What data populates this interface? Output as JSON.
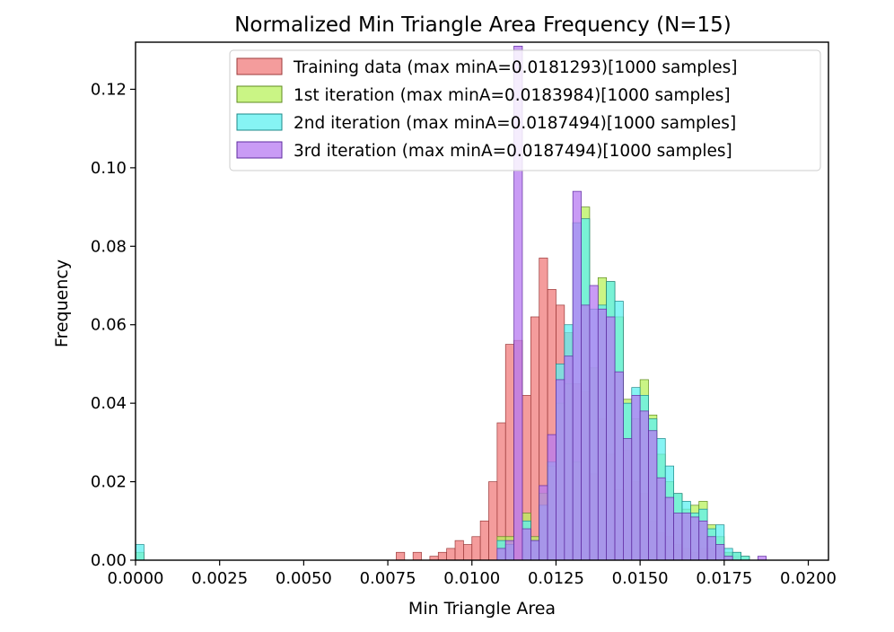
{
  "chart_data": {
    "type": "histogram",
    "title": "Normalized Min Triangle Area Frequency (N=15)",
    "xlabel": "Min Triangle Area",
    "ylabel": "Frequency",
    "xlim": [
      0.0,
      0.0206
    ],
    "ylim": [
      0.0,
      0.132
    ],
    "xticks": [
      0.0,
      0.0025,
      0.005,
      0.0075,
      0.01,
      0.0125,
      0.015,
      0.0175,
      0.02
    ],
    "xtick_labels": [
      "0.0000",
      "0.0025",
      "0.0050",
      "0.0075",
      "0.0100",
      "0.0125",
      "0.0150",
      "0.0175",
      "0.0200"
    ],
    "yticks": [
      0.0,
      0.02,
      0.04,
      0.06,
      0.08,
      0.1,
      0.12
    ],
    "ytick_labels": [
      "0.00",
      "0.02",
      "0.04",
      "0.06",
      "0.08",
      "0.10",
      "0.12"
    ],
    "bin_width": 0.00025,
    "legend_position": "top-right",
    "series": [
      {
        "name": "Training data (max minA=0.0181293)[1000 samples]",
        "color": "#f07b7b",
        "edge": "#9b3a3a",
        "bins": [
          [
            0.00775,
            0.002
          ],
          [
            0.00825,
            0.002
          ],
          [
            0.00875,
            0.001
          ],
          [
            0.009,
            0.002
          ],
          [
            0.00925,
            0.003
          ],
          [
            0.0095,
            0.005
          ],
          [
            0.00975,
            0.004
          ],
          [
            0.01,
            0.006
          ],
          [
            0.01025,
            0.01
          ],
          [
            0.0105,
            0.02
          ],
          [
            0.01075,
            0.035
          ],
          [
            0.011,
            0.055
          ],
          [
            0.01125,
            0.056
          ],
          [
            0.0115,
            0.042
          ],
          [
            0.01175,
            0.062
          ],
          [
            0.012,
            0.077
          ],
          [
            0.01225,
            0.069
          ],
          [
            0.0125,
            0.065
          ],
          [
            0.01275,
            0.058
          ],
          [
            0.013,
            0.045
          ],
          [
            0.01325,
            0.043
          ],
          [
            0.0135,
            0.022
          ],
          [
            0.01375,
            0.036
          ],
          [
            0.014,
            0.027
          ],
          [
            0.01425,
            0.018
          ],
          [
            0.0145,
            0.028
          ],
          [
            0.01475,
            0.02
          ],
          [
            0.015,
            0.017
          ],
          [
            0.01525,
            0.01
          ],
          [
            0.0155,
            0.007
          ],
          [
            0.01575,
            0.006
          ],
          [
            0.016,
            0.004
          ],
          [
            0.01625,
            0.003
          ],
          [
            0.0165,
            0.002
          ],
          [
            0.01675,
            0.003
          ],
          [
            0.017,
            0.003
          ],
          [
            0.0175,
            0.002
          ],
          [
            0.01775,
            0.001
          ]
        ]
      },
      {
        "name": "1st iteration (max minA=0.0183984)[1000 samples]",
        "color": "#b8f25c",
        "edge": "#5f8a20",
        "bins": [
          [
            0.0,
            0.002
          ],
          [
            0.01075,
            0.006
          ],
          [
            0.011,
            0.006
          ],
          [
            0.0115,
            0.012
          ],
          [
            0.01175,
            0.006
          ],
          [
            0.012,
            0.017
          ],
          [
            0.01225,
            0.024
          ],
          [
            0.0125,
            0.04
          ],
          [
            0.01275,
            0.045
          ],
          [
            0.013,
            0.025
          ],
          [
            0.01325,
            0.09
          ],
          [
            0.0135,
            0.049
          ],
          [
            0.01375,
            0.072
          ],
          [
            0.014,
            0.071
          ],
          [
            0.01425,
            0.062
          ],
          [
            0.0145,
            0.041
          ],
          [
            0.01475,
            0.036
          ],
          [
            0.015,
            0.046
          ],
          [
            0.01525,
            0.037
          ],
          [
            0.0155,
            0.027
          ],
          [
            0.01575,
            0.02
          ],
          [
            0.016,
            0.017
          ],
          [
            0.01625,
            0.013
          ],
          [
            0.0165,
            0.014
          ],
          [
            0.01675,
            0.015
          ],
          [
            0.017,
            0.009
          ],
          [
            0.01725,
            0.006
          ],
          [
            0.0175,
            0.002
          ],
          [
            0.01775,
            0.002
          ],
          [
            0.018,
            0.001
          ]
        ]
      },
      {
        "name": "2nd iteration (max minA=0.0187494)[1000 samples]",
        "color": "#5ef0f0",
        "edge": "#1c8888",
        "bins": [
          [
            0.0,
            0.004
          ],
          [
            0.01075,
            0.005
          ],
          [
            0.011,
            0.004
          ],
          [
            0.0115,
            0.01
          ],
          [
            0.01175,
            0.005
          ],
          [
            0.012,
            0.014
          ],
          [
            0.01225,
            0.025
          ],
          [
            0.0125,
            0.05
          ],
          [
            0.01275,
            0.06
          ],
          [
            0.013,
            0.086
          ],
          [
            0.01325,
            0.087
          ],
          [
            0.0135,
            0.064
          ],
          [
            0.01375,
            0.065
          ],
          [
            0.014,
            0.071
          ],
          [
            0.01425,
            0.066
          ],
          [
            0.0145,
            0.04
          ],
          [
            0.01475,
            0.044
          ],
          [
            0.015,
            0.042
          ],
          [
            0.01525,
            0.036
          ],
          [
            0.0155,
            0.031
          ],
          [
            0.01575,
            0.024
          ],
          [
            0.016,
            0.017
          ],
          [
            0.01625,
            0.015
          ],
          [
            0.0165,
            0.012
          ],
          [
            0.01675,
            0.013
          ],
          [
            0.017,
            0.008
          ],
          [
            0.01725,
            0.009
          ],
          [
            0.0175,
            0.003
          ],
          [
            0.01775,
            0.002
          ],
          [
            0.018,
            0.001
          ]
        ]
      },
      {
        "name": "3rd iteration (max minA=0.0187494)[1000 samples]",
        "color": "#b77af2",
        "edge": "#5e2ba0",
        "bins": [
          [
            0.01075,
            0.003
          ],
          [
            0.011,
            0.005
          ],
          [
            0.01125,
            0.131
          ],
          [
            0.0115,
            0.008
          ],
          [
            0.01175,
            0.005
          ],
          [
            0.012,
            0.019
          ],
          [
            0.01225,
            0.032
          ],
          [
            0.0125,
            0.046
          ],
          [
            0.01275,
            0.052
          ],
          [
            0.013,
            0.094
          ],
          [
            0.01325,
            0.065
          ],
          [
            0.0135,
            0.07
          ],
          [
            0.01375,
            0.064
          ],
          [
            0.014,
            0.062
          ],
          [
            0.01425,
            0.048
          ],
          [
            0.0145,
            0.031
          ],
          [
            0.01475,
            0.042
          ],
          [
            0.015,
            0.038
          ],
          [
            0.01525,
            0.033
          ],
          [
            0.0155,
            0.021
          ],
          [
            0.01575,
            0.016
          ],
          [
            0.016,
            0.012
          ],
          [
            0.01625,
            0.012
          ],
          [
            0.0165,
            0.011
          ],
          [
            0.01675,
            0.01
          ],
          [
            0.017,
            0.006
          ],
          [
            0.01725,
            0.004
          ],
          [
            0.0175,
            0.001
          ],
          [
            0.0185,
            0.001
          ]
        ]
      }
    ]
  }
}
